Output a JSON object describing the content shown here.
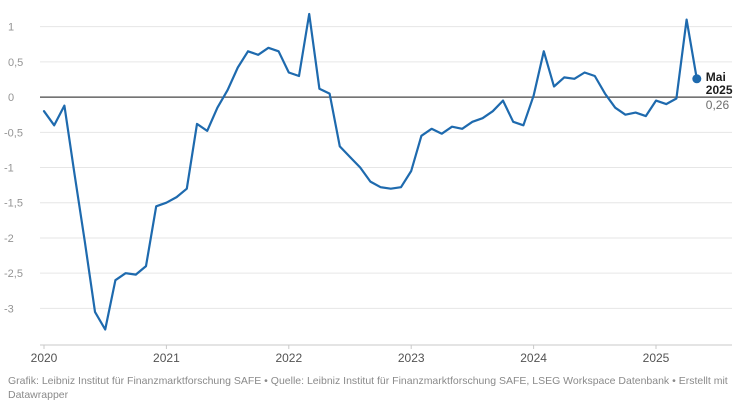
{
  "chart_data": {
    "type": "line",
    "x_axis": {
      "unit": "month-index (0 = Jan 2020, monthly steps)",
      "tick_labels": [
        "2020",
        "2021",
        "2022",
        "2023",
        "2024",
        "2025"
      ],
      "tick_month_indexes": [
        0,
        12,
        24,
        36,
        48,
        60
      ]
    },
    "y_axis": {
      "tick_values": [
        1,
        0.5,
        0,
        -0.5,
        -1,
        -1.5,
        -2,
        -2.5,
        -3
      ],
      "tick_labels": [
        "1",
        "0,5",
        "0",
        "-0,5",
        "-1",
        "-1,5",
        "-2",
        "-2,5",
        "-3"
      ],
      "range": [
        -3.52,
        1.18
      ],
      "zero_line": true,
      "grid": "horizontal"
    },
    "series": [
      {
        "color": "#1e6aae",
        "month_index_start": 0,
        "values": [
          -0.2,
          -0.4,
          -0.12,
          -1.1,
          -2.05,
          -3.05,
          -3.3,
          -2.6,
          -2.5,
          -2.52,
          -2.4,
          -1.55,
          -1.5,
          -1.42,
          -1.3,
          -0.38,
          -0.48,
          -0.15,
          0.1,
          0.42,
          0.65,
          0.6,
          0.7,
          0.65,
          0.35,
          0.3,
          1.18,
          0.12,
          0.05,
          -0.7,
          -0.85,
          -1.0,
          -1.2,
          -1.28,
          -1.3,
          -1.28,
          -1.05,
          -0.55,
          -0.45,
          -0.52,
          -0.42,
          -0.45,
          -0.35,
          -0.3,
          -0.2,
          -0.05,
          -0.35,
          -0.4,
          0.02,
          0.65,
          0.15,
          0.28,
          0.26,
          0.35,
          0.3,
          0.05,
          -0.15,
          -0.25,
          -0.22,
          -0.27,
          -0.05,
          -0.1,
          -0.02,
          1.1,
          0.26
        ]
      }
    ],
    "annotation": {
      "marker_month_index": 64,
      "marker_value": 0.26,
      "label_line1": "Mai",
      "label_line2": "2025",
      "value_label": "0,26",
      "marker_color": "#1e6aae",
      "label_color": "#1d1d1d",
      "value_color": "#6e6e6e"
    },
    "legend": "none"
  },
  "footer": {
    "text": "Grafik: Leibniz Institut für Finanzmarktforschung SAFE • Quelle: Leibniz Institut für Finanzmarktforschung SAFE, LSEG Workspace Datenbank • Erstellt mit Datawrapper"
  },
  "colors": {
    "grid": "#e6e6e6",
    "zero_line": "#474747",
    "axis_line": "#c9c9c9",
    "y_label": "#949494",
    "x_label": "#535353",
    "background": "#ffffff"
  }
}
